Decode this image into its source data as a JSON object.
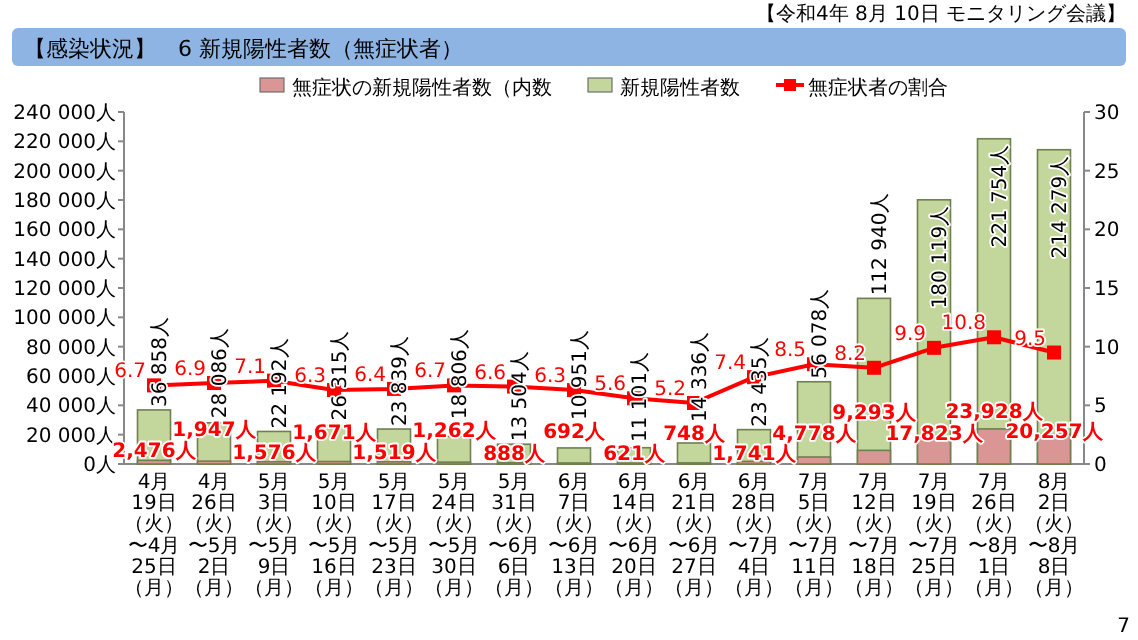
{
  "chart_data": {
    "type": "bar",
    "title": "【感染状況】　6 新規陽性者数（無症状者）",
    "annotations": [
      "【令和4年 8月 10日 モニタリング会議】",
      "7"
    ],
    "categories": [
      "4月19日（火）〜4月25日（月）",
      "4月26日（火）〜5月2日（月）",
      "5月3日（火）〜5月9日（月）",
      "5月10日（火）〜5月16日（月）",
      "5月17日（火）〜5月23日（月）",
      "5月24日（火）〜5月30日（月）",
      "5月31日（火）〜6月6日（月）",
      "6月7日（火）〜6月13日（月）",
      "6月14日（火）〜6月20日（月）",
      "6月21日（火）〜6月27日（月）",
      "6月28日（火）〜7月4日（月）",
      "7月5日（火）〜7月11日（月）",
      "7月12日（火）〜7月18日（月）",
      "7月19日（火）〜7月25日（月）",
      "7月26日（火）〜8月1日（月）",
      "8月2日（火）〜8月8日（月）"
    ],
    "series": [
      {
        "name": "無症状の新規陽性者数（内数",
        "color": "#d99694",
        "values": [
          2476,
          1947,
          1576,
          1671,
          1519,
          1262,
          888,
          692,
          621,
          748,
          1741,
          4778,
          9293,
          17823,
          23928,
          20257
        ],
        "value_labels": [
          "2,476人",
          "1,947人",
          "1,576人",
          "1,671人",
          "1,519人",
          "1,262人",
          "888人",
          "692人",
          "621人",
          "748人",
          "1,741人",
          "4,778人",
          "9,293人",
          "17,823人",
          "23,928人",
          "20,257人"
        ]
      },
      {
        "name": "新規陽性者数",
        "color": "#c3d69b",
        "values": [
          36858,
          28086,
          22192,
          26315,
          23839,
          18806,
          13504,
          10951,
          11101,
          14336,
          23435,
          56078,
          112940,
          180119,
          221754,
          214279
        ],
        "value_labels": [
          "36 858人",
          "28 086人",
          "22 192人",
          "26 315人",
          "23 839人",
          "18 806人",
          "13 504人",
          "10 951人",
          "11 101人",
          "14 336人",
          "23 435人",
          "56 078人",
          "112 940人",
          "180 119人",
          "221 754人",
          "214 279人"
        ]
      },
      {
        "name": "無症状者の割合",
        "type": "line",
        "axis": "y2",
        "color": "#ff0000",
        "values": [
          6.7,
          6.9,
          7.1,
          6.3,
          6.4,
          6.7,
          6.6,
          6.3,
          5.6,
          5.2,
          7.4,
          8.5,
          8.2,
          9.9,
          10.8,
          9.5
        ],
        "value_labels": [
          "6.7",
          "6.9",
          "7.1",
          "6.3",
          "6.4",
          "6.7",
          "6.6",
          "6.3",
          "5.6",
          "5.2",
          "7.4",
          "8.5",
          "8.2",
          "9.9",
          "10.8",
          "9.5"
        ]
      }
    ],
    "ylim": [
      0,
      240000
    ],
    "yticks": [
      {
        "value": 0,
        "label": "0人"
      },
      {
        "value": 20000,
        "label": "20 000人"
      },
      {
        "value": 40000,
        "label": "40 000人"
      },
      {
        "value": 60000,
        "label": "60 000人"
      },
      {
        "value": 80000,
        "label": "80 000人"
      },
      {
        "value": 100000,
        "label": "100 000人"
      },
      {
        "value": 120000,
        "label": "120 000人"
      },
      {
        "value": 140000,
        "label": "140 000人"
      },
      {
        "value": 160000,
        "label": "160 000人"
      },
      {
        "value": 180000,
        "label": "180 000人"
      },
      {
        "value": 200000,
        "label": "200 000人"
      },
      {
        "value": 220000,
        "label": "220 000人"
      },
      {
        "value": 240000,
        "label": "240 000人"
      }
    ],
    "y2lim": [
      0,
      30
    ],
    "y2ticks": [
      0,
      5,
      10,
      15,
      20,
      25,
      30
    ],
    "marker": "square",
    "legend": "top",
    "grid": false
  }
}
